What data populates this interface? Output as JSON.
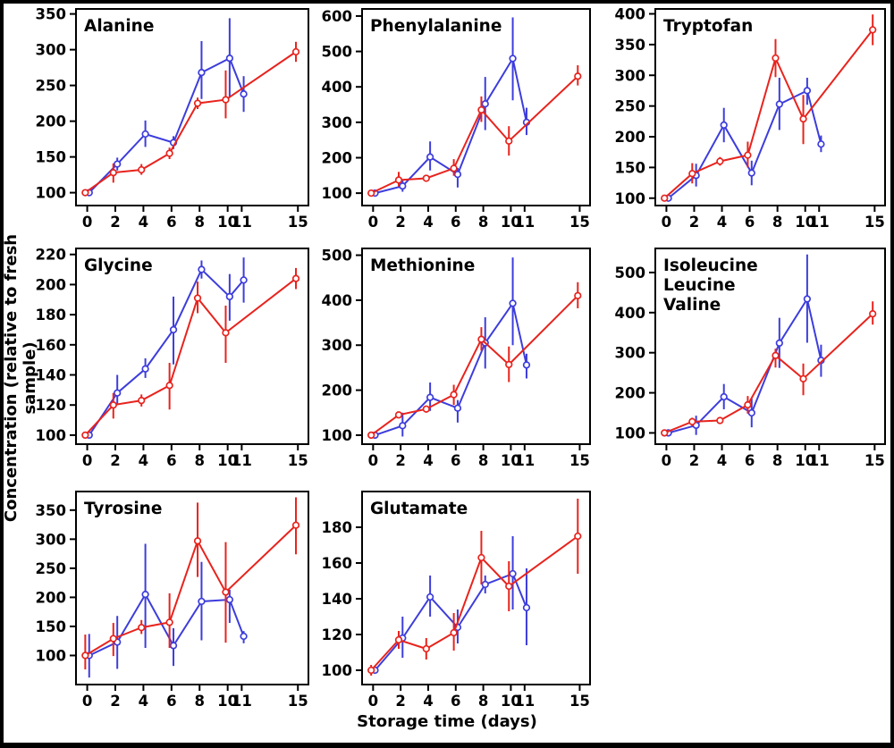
{
  "figure": {
    "xlabel": "Storage time (days)",
    "ylabel": "Concentration (relative to fresh sample)",
    "xticks": [
      0,
      2,
      4,
      6,
      8,
      10,
      11,
      15
    ]
  },
  "colors": {
    "series_red": "#e8231d",
    "series_blue": "#3d3ddc",
    "axis": "#000000",
    "background": "#ffffff",
    "border": "#000000"
  },
  "chart_data": [
    {
      "type": "line",
      "title": "Alanine",
      "ylim": [
        82,
        357
      ],
      "yticks": [
        100,
        150,
        200,
        250,
        300,
        350
      ],
      "series": [
        {
          "name": "blue",
          "color": "#3d3ddc",
          "x": [
            0,
            2,
            4,
            6,
            8,
            10,
            11
          ],
          "y": [
            100,
            140,
            182,
            170,
            268,
            288,
            238
          ],
          "err_lo": [
            97,
            131,
            164,
            161,
            231,
            233,
            213
          ],
          "err_hi": [
            103,
            149,
            201,
            179,
            312,
            344,
            263
          ]
        },
        {
          "name": "red",
          "color": "#e8231d",
          "x": [
            0,
            2,
            4,
            6,
            8,
            10,
            15
          ],
          "y": [
            100,
            128,
            132,
            155,
            225,
            230,
            297
          ],
          "err_lo": [
            97,
            114,
            125,
            147,
            217,
            204,
            283
          ],
          "err_hi": [
            103,
            141,
            140,
            163,
            233,
            271,
            311
          ]
        }
      ]
    },
    {
      "type": "line",
      "title": "Phenylalanine",
      "ylim": [
        65,
        620
      ],
      "yticks": [
        100,
        200,
        300,
        400,
        500,
        600
      ],
      "series": [
        {
          "name": "blue",
          "color": "#3d3ddc",
          "x": [
            0,
            2,
            4,
            6,
            8,
            10,
            11
          ],
          "y": [
            100,
            120,
            202,
            153,
            352,
            480,
            300
          ],
          "err_lo": [
            96,
            104,
            164,
            116,
            278,
            362,
            264
          ],
          "err_hi": [
            104,
            136,
            246,
            171,
            428,
            596,
            341
          ]
        },
        {
          "name": "red",
          "color": "#e8231d",
          "x": [
            0,
            2,
            4,
            6,
            8,
            10,
            15
          ],
          "y": [
            100,
            137,
            142,
            170,
            335,
            247,
            430
          ],
          "err_lo": [
            96,
            119,
            134,
            149,
            301,
            206,
            404
          ],
          "err_hi": [
            104,
            160,
            150,
            196,
            373,
            289,
            461
          ]
        }
      ]
    },
    {
      "type": "line",
      "title": "Tryptofan",
      "ylim": [
        88,
        408
      ],
      "yticks": [
        100,
        150,
        200,
        250,
        300,
        350,
        400
      ],
      "series": [
        {
          "name": "blue",
          "color": "#3d3ddc",
          "x": [
            0,
            2,
            4,
            6,
            8,
            10,
            11
          ],
          "y": [
            100,
            137,
            219,
            141,
            253,
            275,
            188
          ],
          "err_lo": [
            97,
            119,
            191,
            121,
            211,
            252,
            175
          ],
          "err_hi": [
            103,
            156,
            247,
            161,
            296,
            296,
            202
          ]
        },
        {
          "name": "red",
          "color": "#e8231d",
          "x": [
            0,
            2,
            4,
            6,
            8,
            10,
            15
          ],
          "y": [
            100,
            140,
            160,
            170,
            328,
            229,
            374
          ],
          "err_lo": [
            97,
            124,
            153,
            150,
            297,
            188,
            349
          ],
          "err_hi": [
            103,
            157,
            167,
            192,
            359,
            268,
            399
          ]
        }
      ]
    },
    {
      "type": "line",
      "title": "Glycine",
      "ylim": [
        94,
        224
      ],
      "yticks": [
        100,
        120,
        140,
        160,
        180,
        200,
        220
      ],
      "series": [
        {
          "name": "blue",
          "color": "#3d3ddc",
          "x": [
            0,
            2,
            4,
            6,
            8,
            10,
            11
          ],
          "y": [
            100,
            128,
            144,
            170,
            210,
            192,
            203
          ],
          "err_lo": [
            99,
            121,
            138,
            147,
            204,
            176,
            188
          ],
          "err_hi": [
            101,
            140,
            151,
            192,
            216,
            207,
            218
          ]
        },
        {
          "name": "red",
          "color": "#e8231d",
          "x": [
            0,
            2,
            4,
            6,
            8,
            10,
            15
          ],
          "y": [
            100,
            120,
            123,
            133,
            191,
            168,
            204
          ],
          "err_lo": [
            99,
            111,
            119,
            117,
            181,
            148,
            197
          ],
          "err_hi": [
            101,
            128,
            127,
            148,
            202,
            186,
            211
          ]
        }
      ]
    },
    {
      "type": "line",
      "title": "Methionine",
      "ylim": [
        80,
        515
      ],
      "yticks": [
        100,
        200,
        300,
        400,
        500
      ],
      "series": [
        {
          "name": "blue",
          "color": "#3d3ddc",
          "x": [
            0,
            2,
            4,
            6,
            8,
            10,
            11
          ],
          "y": [
            100,
            121,
            184,
            160,
            305,
            393,
            256
          ],
          "err_lo": [
            96,
            97,
            154,
            128,
            248,
            300,
            226
          ],
          "err_hi": [
            104,
            150,
            217,
            178,
            362,
            495,
            281
          ]
        },
        {
          "name": "red",
          "color": "#e8231d",
          "x": [
            0,
            2,
            4,
            6,
            8,
            10,
            15
          ],
          "y": [
            100,
            145,
            158,
            190,
            313,
            257,
            410
          ],
          "err_lo": [
            96,
            138,
            150,
            167,
            288,
            218,
            382
          ],
          "err_hi": [
            104,
            152,
            165,
            212,
            340,
            297,
            440
          ]
        }
      ]
    },
    {
      "type": "line",
      "title": [
        "Isoleucine",
        "Leucine",
        "Valine"
      ],
      "ylim": [
        72,
        560
      ],
      "yticks": [
        100,
        200,
        300,
        400,
        500
      ],
      "series": [
        {
          "name": "blue",
          "color": "#3d3ddc",
          "x": [
            0,
            2,
            4,
            6,
            8,
            10,
            11
          ],
          "y": [
            100,
            119,
            190,
            150,
            324,
            434,
            281
          ],
          "err_lo": [
            96,
            95,
            159,
            114,
            262,
            325,
            240
          ],
          "err_hi": [
            104,
            143,
            222,
            186,
            387,
            545,
            320
          ]
        },
        {
          "name": "red",
          "color": "#e8231d",
          "x": [
            0,
            2,
            4,
            6,
            8,
            10,
            15
          ],
          "y": [
            100,
            128,
            131,
            170,
            293,
            235,
            397
          ],
          "err_lo": [
            96,
            117,
            126,
            148,
            263,
            194,
            370
          ],
          "err_hi": [
            104,
            138,
            136,
            192,
            310,
            273,
            428
          ]
        }
      ]
    },
    {
      "type": "line",
      "title": "Tyrosine",
      "ylim": [
        50,
        382
      ],
      "yticks": [
        100,
        150,
        200,
        250,
        300,
        350
      ],
      "series": [
        {
          "name": "blue",
          "color": "#3d3ddc",
          "x": [
            0,
            2,
            4,
            6,
            8,
            10,
            11
          ],
          "y": [
            100,
            123,
            205,
            117,
            193,
            196,
            133
          ],
          "err_lo": [
            62,
            77,
            113,
            82,
            126,
            156,
            121
          ],
          "err_hi": [
            137,
            168,
            292,
            147,
            261,
            213,
            142
          ]
        },
        {
          "name": "red",
          "color": "#e8231d",
          "x": [
            0,
            2,
            4,
            6,
            8,
            10,
            15
          ],
          "y": [
            100,
            129,
            148,
            157,
            297,
            209,
            324
          ],
          "err_lo": [
            76,
            99,
            137,
            113,
            235,
            122,
            274
          ],
          "err_hi": [
            136,
            156,
            161,
            207,
            363,
            295,
            372
          ]
        }
      ]
    },
    {
      "type": "line",
      "title": "Glutamate",
      "ylim": [
        92,
        200
      ],
      "yticks": [
        100,
        120,
        140,
        160,
        180
      ],
      "series": [
        {
          "name": "blue",
          "color": "#3d3ddc",
          "x": [
            0,
            2,
            4,
            6,
            8,
            10,
            11
          ],
          "y": [
            100,
            118,
            141,
            124,
            148,
            154,
            135
          ],
          "err_lo": [
            98,
            107,
            130,
            115,
            143,
            134,
            114
          ],
          "err_hi": [
            102,
            130,
            153,
            134,
            153,
            175,
            157
          ]
        },
        {
          "name": "red",
          "color": "#e8231d",
          "x": [
            0,
            2,
            4,
            6,
            8,
            10,
            15
          ],
          "y": [
            100,
            117,
            112,
            121,
            163,
            147,
            175
          ],
          "err_lo": [
            97,
            112,
            106,
            111,
            148,
            133,
            154
          ],
          "err_hi": [
            103,
            122,
            118,
            132,
            178,
            161,
            196
          ]
        }
      ]
    }
  ]
}
